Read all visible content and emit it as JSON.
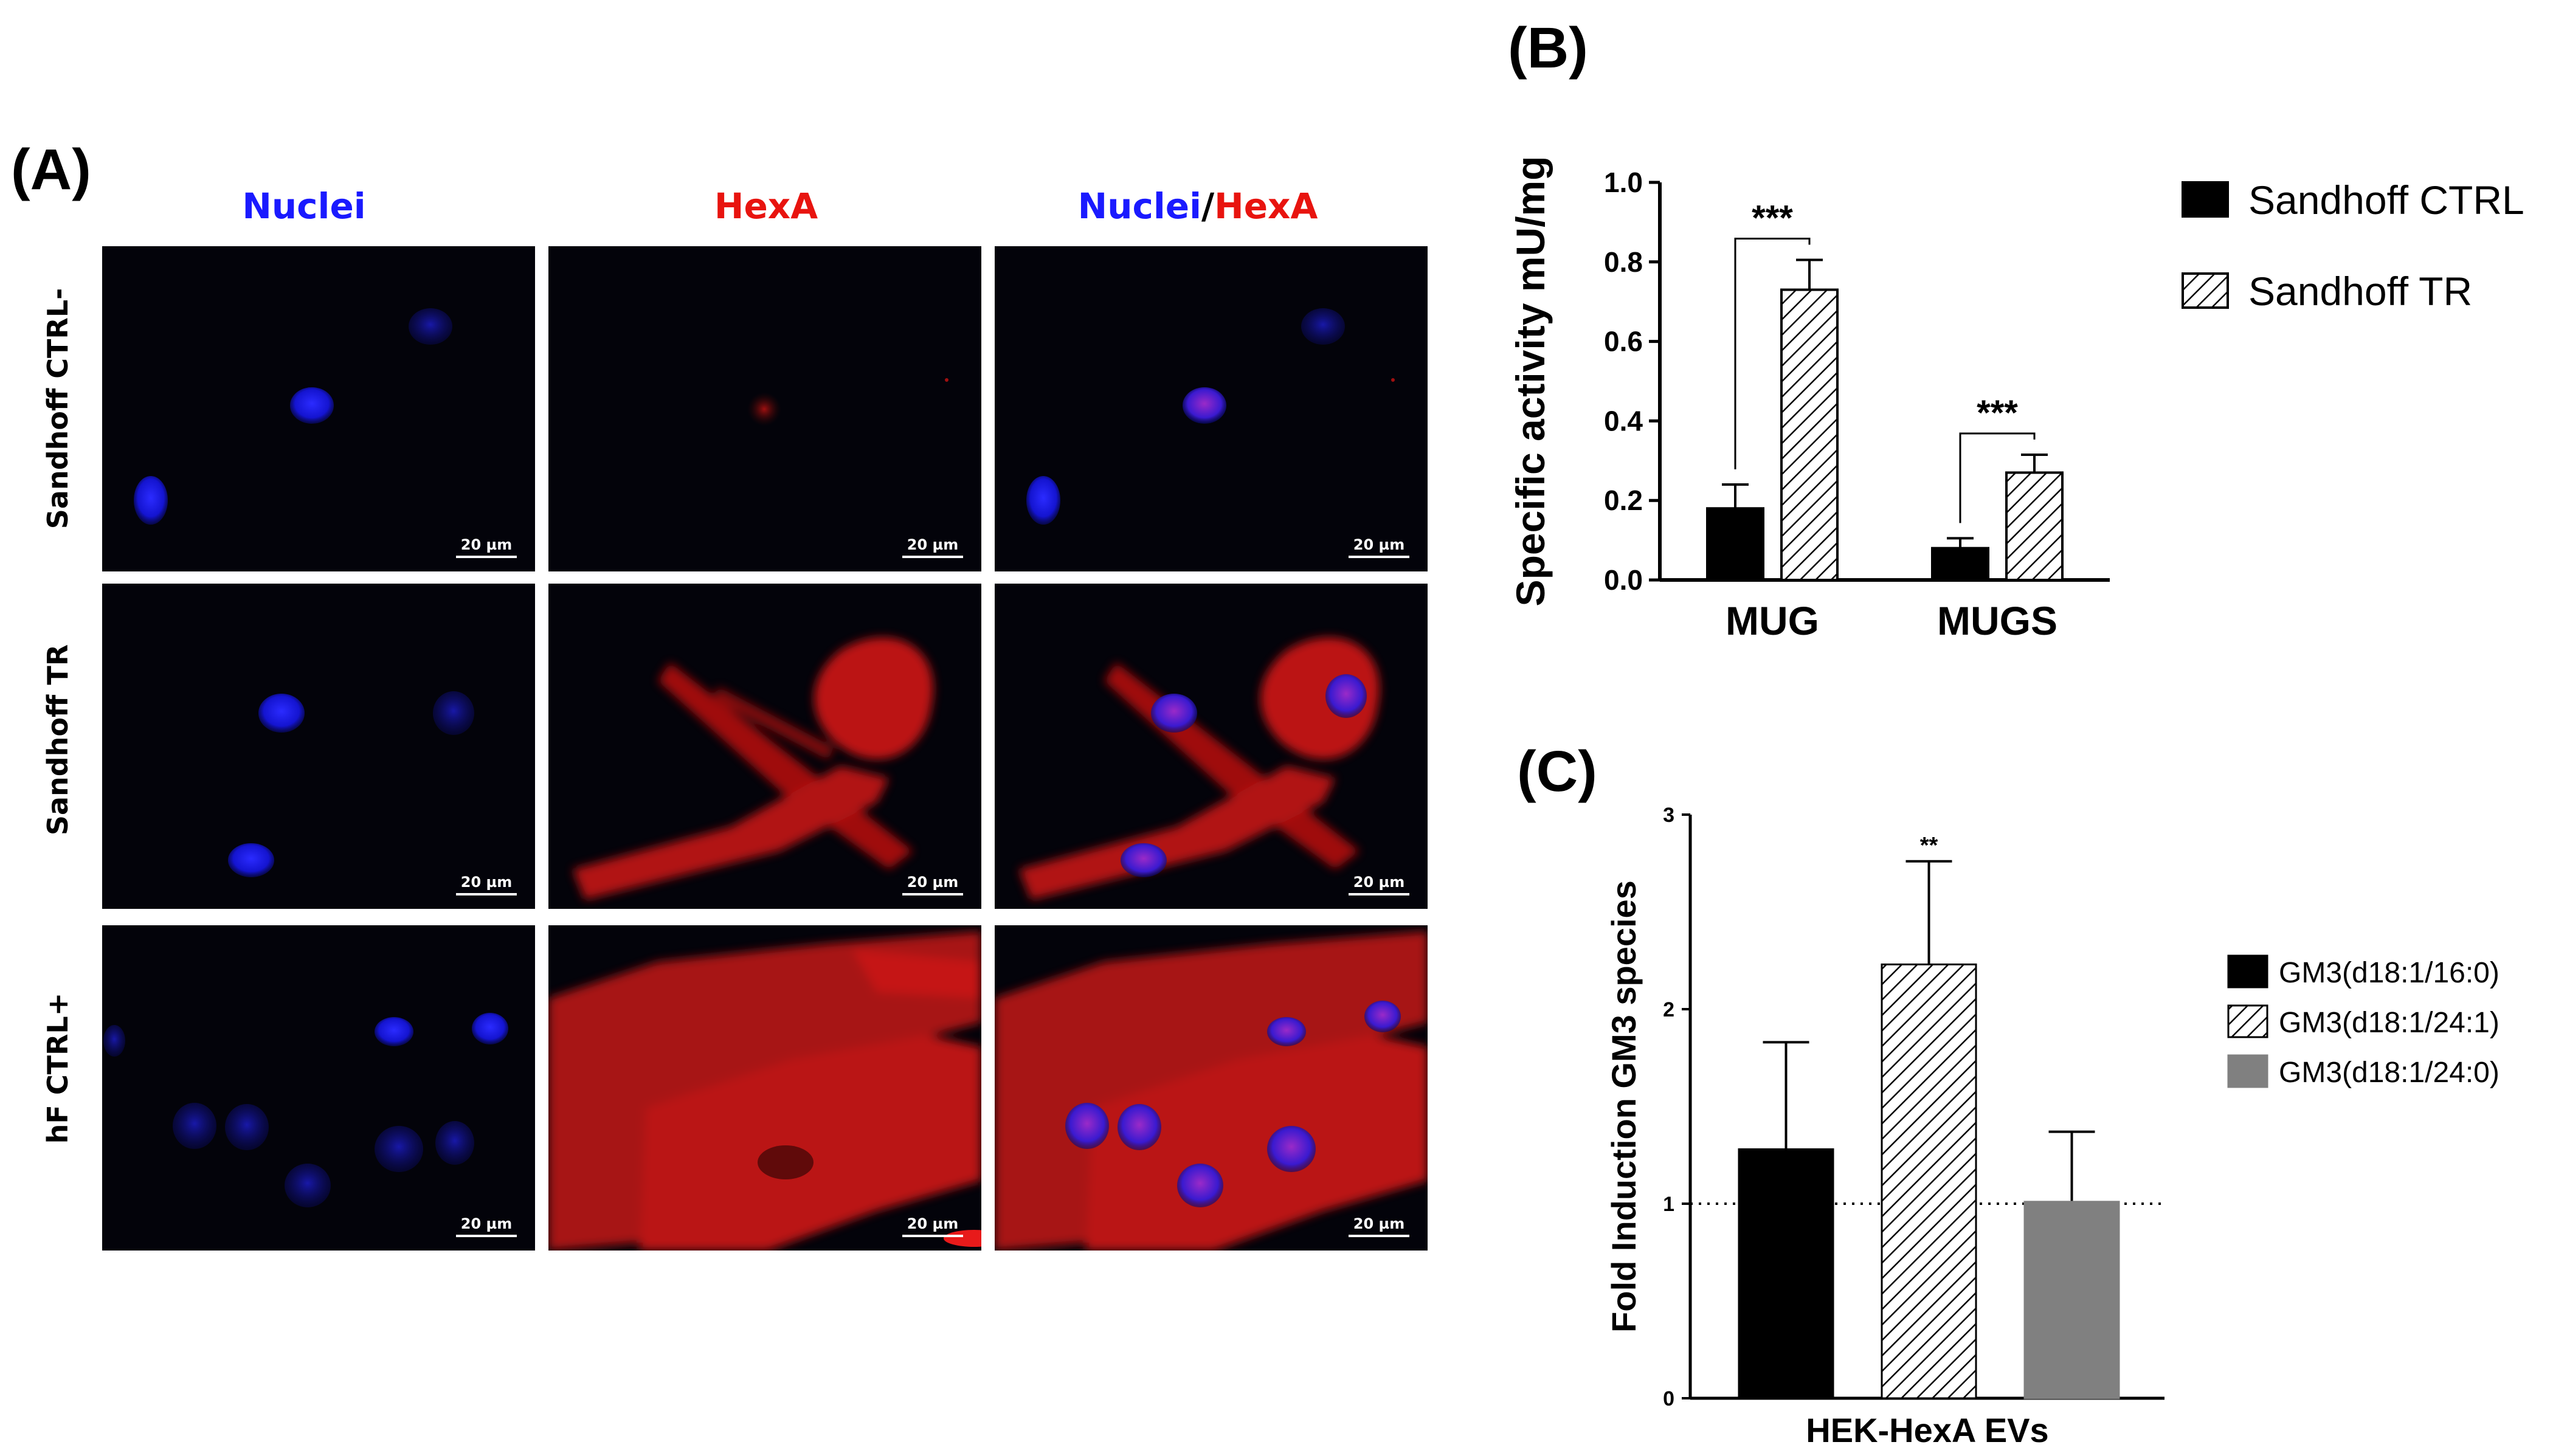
{
  "panels": {
    "A": "(A)",
    "B": "(B)",
    "C": "(C)"
  },
  "panel_a": {
    "columns": {
      "nuclei": "Nuclei",
      "hexa": "HexA",
      "merge_nuclei": "Nuclei",
      "merge_sep": "/",
      "merge_hexa": "HexA"
    },
    "rows": [
      "Sandhoff CTRL-",
      "Sandhoff TR",
      "hF CTRL+"
    ],
    "scale_label": "20 µm",
    "colors": {
      "nuclei": "#1a1aff",
      "hexa": "#e8140f",
      "background": "#03030a"
    }
  },
  "chart_data": [
    {
      "panel": "B",
      "type": "bar",
      "categories": [
        "MUG",
        "MUGS"
      ],
      "ylabel": "Specific activity mU/mg",
      "ylim": [
        0,
        1.0
      ],
      "yticks": [
        "0.0",
        "0.2",
        "0.4",
        "0.6",
        "0.8",
        "1.0"
      ],
      "series": [
        {
          "name": "Sandhoff CTRL",
          "pattern": "solid",
          "color": "#000000",
          "values": [
            0.18,
            0.08
          ],
          "errors": [
            0.06,
            0.025
          ]
        },
        {
          "name": "Sandhoff TR",
          "pattern": "hatched",
          "color": "#000000",
          "values": [
            0.73,
            0.27
          ],
          "errors": [
            0.075,
            0.045
          ]
        }
      ],
      "significance": [
        "***",
        "***"
      ],
      "legend": "right"
    },
    {
      "panel": "C",
      "type": "bar",
      "categories": [
        "HEK-HexA EVs"
      ],
      "ylabel": "Fold Induction GM3 species",
      "ylim": [
        0,
        3
      ],
      "yticks": [
        "0",
        "1",
        "2",
        "3"
      ],
      "reference_line": 1,
      "series": [
        {
          "name": "GM3(d18:1/16:0)",
          "pattern": "solid",
          "color": "#000000",
          "values": [
            1.28
          ],
          "errors": [
            0.55
          ]
        },
        {
          "name": "GM3(d18:1/24:1)",
          "pattern": "hatched",
          "color": "#000000",
          "values": [
            2.23
          ],
          "errors": [
            0.53
          ]
        },
        {
          "name": "GM3(d18:1/24:0)",
          "pattern": "solid",
          "color": "#808080",
          "values": [
            1.01
          ],
          "errors": [
            0.36
          ]
        }
      ],
      "significance": [
        "",
        "**",
        ""
      ],
      "legend": "right"
    }
  ]
}
